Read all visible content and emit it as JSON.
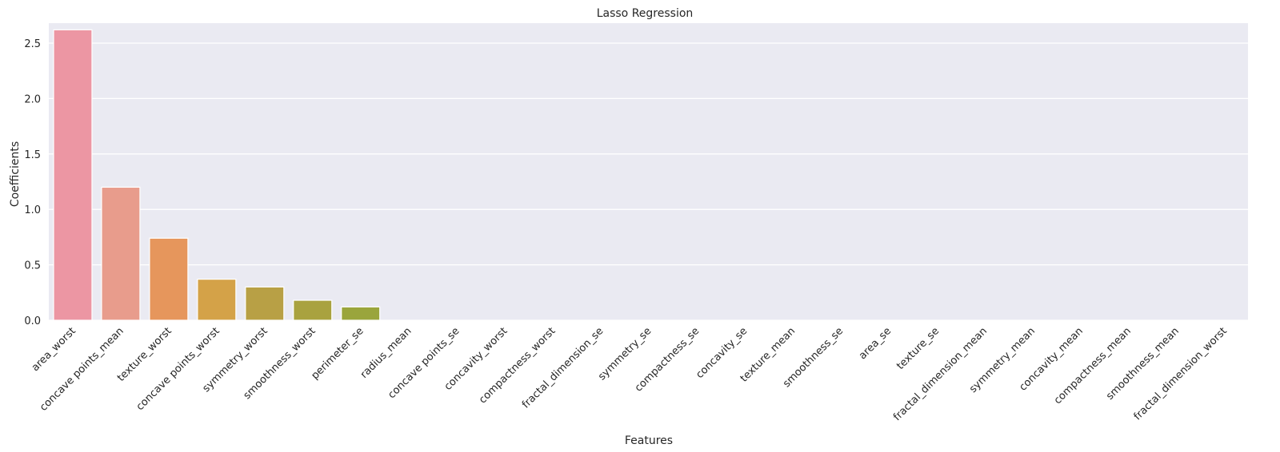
{
  "chart_data": {
    "type": "bar",
    "title": "Lasso Regression",
    "xlabel": "Features",
    "ylabel": "Coefficients",
    "ylim": [
      0,
      2.68
    ],
    "yticks": [
      "0.0",
      "0.5",
      "1.0",
      "1.5",
      "2.0",
      "2.5"
    ],
    "grid": "horizontal",
    "categories": [
      "area_worst",
      "concave points_mean",
      "texture_worst",
      "concave points_worst",
      "symmetry_worst",
      "smoothness_worst",
      "perimeter_se",
      "radius_mean",
      "concave points_se",
      "concavity_worst",
      "compactness_worst",
      "fractal_dimension_se",
      "symmetry_se",
      "compactness_se",
      "concavity_se",
      "texture_mean",
      "smoothness_se",
      "area_se",
      "texture_se",
      "fractal_dimension_mean",
      "symmetry_mean",
      "concavity_mean",
      "compactness_mean",
      "smoothness_mean",
      "fractal_dimension_worst"
    ],
    "values": [
      2.62,
      1.2,
      0.74,
      0.37,
      0.3,
      0.18,
      0.12,
      0,
      0,
      0,
      0,
      0,
      0,
      0,
      0,
      0,
      0,
      0,
      0,
      0,
      0,
      0,
      0,
      0,
      0
    ],
    "colors": [
      "#ec96a3",
      "#e89c8c",
      "#e6965c",
      "#d4a248",
      "#b8a045",
      "#a9a23f",
      "#9aa53c",
      "#8aa83a",
      "#7aab3e",
      "#5fae4a",
      "#48b05c",
      "#42b07a",
      "#44ae8c",
      "#45ad99",
      "#47aca6",
      "#48aab4",
      "#4aa8c4",
      "#5aa3d8",
      "#7a9ce6",
      "#9592ec",
      "#b087ea",
      "#c77ee4",
      "#dc78d4",
      "#e67ab8",
      "#ea84a4"
    ],
    "background": "#eaeaf2"
  }
}
